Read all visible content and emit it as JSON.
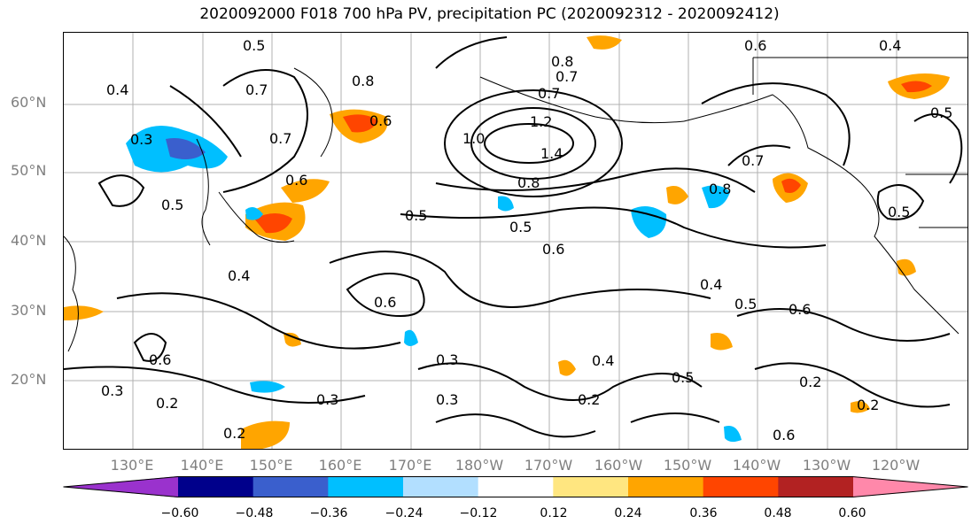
{
  "title": "2020092000 F018 700 hPa PV, precipitation PC (2020092312 - 2020092412)",
  "lat_labels": [
    "60°N",
    "50°N",
    "40°N",
    "30°N",
    "20°N"
  ],
  "lon_labels": [
    "130°E",
    "140°E",
    "150°E",
    "160°E",
    "170°E",
    "180°W",
    "170°W",
    "160°W",
    "150°W",
    "140°W",
    "130°W",
    "120°W"
  ],
  "contour_labels": [
    "0.5",
    "0.4",
    "0.3",
    "0.7",
    "0.8",
    "0.6",
    "0.5",
    "0.4",
    "0.6",
    "0.7",
    "0.8",
    "1.2",
    "1.4",
    "1.0",
    "0.8",
    "0.5",
    "0.5",
    "0.6",
    "0.6",
    "0.4",
    "0.5",
    "0.6",
    "0.4",
    "0.3",
    "0.2",
    "0.3",
    "0.5",
    "0.2",
    "0.6",
    "0.3",
    "0.2",
    "0.2",
    "0.6",
    "0.7",
    "0.8",
    "0.7",
    "0.5",
    "0.4",
    "0.5",
    "0.6",
    "0.3",
    "0.7",
    "0.2"
  ],
  "colorbar": {
    "colors": [
      "#9a32cd",
      "#00008b",
      "#3a5fcd",
      "#00bfff",
      "#b2dfff",
      "#ffffff",
      "#ffe680",
      "#ffa500",
      "#ff4500",
      "#b22222",
      "#ff88aa"
    ],
    "ticks": [
      "−0.60",
      "−0.48",
      "−0.36",
      "−0.24",
      "−0.12",
      "0.12",
      "0.24",
      "0.36",
      "0.48",
      "0.60"
    ]
  },
  "colors": {
    "positive_mid": "#ffa500",
    "positive_high": "#ff4500",
    "negative_mid": "#00bfff",
    "negative_high": "#3a5fcd",
    "grid": "#b0b0b0"
  }
}
